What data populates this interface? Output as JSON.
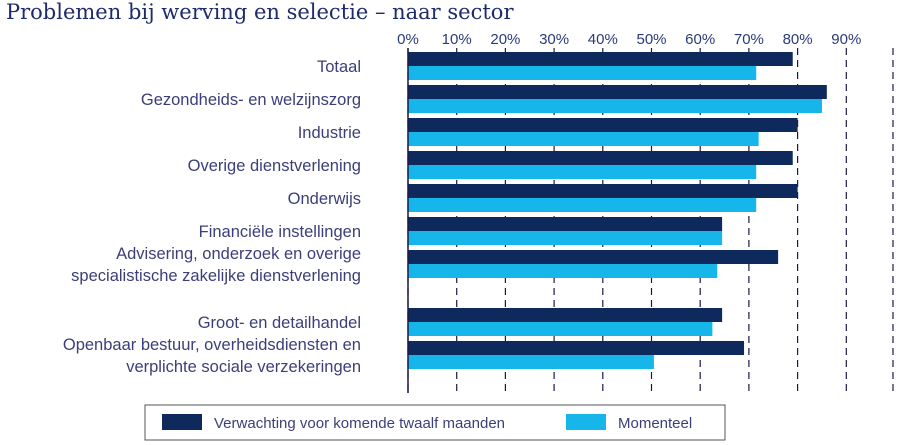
{
  "chart_data": {
    "type": "bar",
    "orientation": "horizontal",
    "title": "Problemen bij werving en selectie – naar sector",
    "xlabel": "",
    "ylabel": "",
    "xlim": [
      0,
      100
    ],
    "ticks": [
      "0%",
      "10%",
      "20%",
      "30%",
      "40%",
      "50%",
      "60%",
      "70%",
      "80%",
      "90%"
    ],
    "tick_values": [
      0,
      10,
      20,
      30,
      40,
      50,
      60,
      70,
      80,
      90
    ],
    "grid": "dashed-vertical",
    "legend_position": "bottom",
    "categories": [
      [
        "Totaal"
      ],
      [
        "Gezondheids- en welzijnszorg"
      ],
      [
        "Industrie"
      ],
      [
        "Overige dienstverlening"
      ],
      [
        "Onderwijs"
      ],
      [
        "Financiële instellingen"
      ],
      [
        "Advisering, onderzoek en overige",
        "specialistische zakelijke dienstverlening"
      ],
      [
        "Groot- en detailhandel"
      ],
      [
        "Openbaar bestuur, overheidsdiensten en",
        "verplichte sociale verzekeringen"
      ]
    ],
    "series": [
      {
        "name": "Verwachting voor komende twaalf maanden",
        "color": "#0e2a5c",
        "values": [
          79,
          86,
          80,
          79,
          80,
          64.5,
          76,
          64.5,
          69
        ]
      },
      {
        "name": "Momenteel",
        "color": "#17b6ea",
        "values": [
          71.5,
          85,
          72,
          71.5,
          71.5,
          64.5,
          63.5,
          62.5,
          50.5
        ]
      }
    ]
  }
}
